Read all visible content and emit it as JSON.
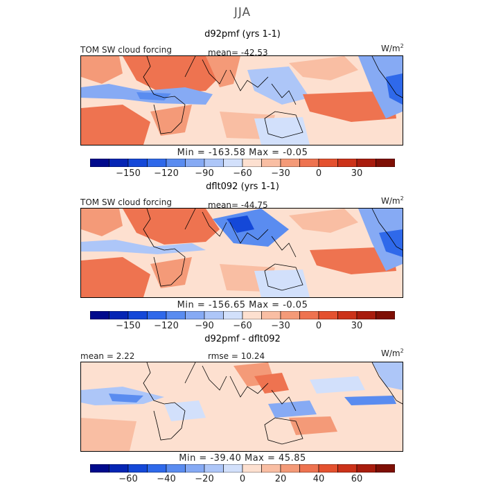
{
  "season_title": "JJA",
  "colors": {
    "scale": [
      "#000a8c",
      "#0525b4",
      "#1448d8",
      "#2f69ea",
      "#5a8cf0",
      "#86aaf4",
      "#adc6f8",
      "#d2e0fb",
      "#ffffff",
      "#fde0d0",
      "#f9bea3",
      "#f49a78",
      "#ee7350",
      "#e4512f",
      "#cc3219",
      "#a81c0d",
      "#7e0f05"
    ],
    "land": "#000000"
  },
  "panels": [
    {
      "title": "d92pmf (yrs 1-1)",
      "left_label": "TOM SW cloud forcing",
      "center_label": "mean= -42.53",
      "units": "W/m",
      "units_sup": "2",
      "minmax": "Min = -163.58 Max = -0.05",
      "ticks": [
        "-150",
        "-120",
        "-90",
        "-60",
        "-30",
        "0",
        "30"
      ]
    },
    {
      "title": "dflt092 (yrs 1-1)",
      "left_label": "TOM SW cloud forcing",
      "center_label": "mean= -44.75",
      "units": "W/m",
      "units_sup": "2",
      "minmax": "Min = -156.65 Max = -0.05",
      "ticks": [
        "-150",
        "-120",
        "-90",
        "-60",
        "-30",
        "0",
        "30"
      ]
    },
    {
      "title": "d92pmf - dflt092",
      "left_label": "mean = 2.22",
      "center_label": "rmse = 10.24",
      "units": "W/m",
      "units_sup": "2",
      "minmax": "Min = -39.40 Max = 45.85",
      "ticks": [
        "-60",
        "-40",
        "-20",
        "0",
        "20",
        "40",
        "60"
      ]
    }
  ],
  "chart_data": [
    {
      "type": "heatmap",
      "title": "d92pmf (yrs 1-1)",
      "variable": "TOM SW cloud forcing",
      "units": "W/m2",
      "mean": -42.53,
      "min": -163.58,
      "max": -0.05,
      "colorbar_levels": [
        -180,
        -165,
        -150,
        -135,
        -120,
        -105,
        -90,
        -75,
        -60,
        -45,
        -30,
        -15,
        0,
        15,
        30,
        45,
        60
      ],
      "colorbar_ticks": [
        -150,
        -120,
        -90,
        -60,
        -30,
        0,
        30
      ]
    },
    {
      "type": "heatmap",
      "title": "dflt092 (yrs 1-1)",
      "variable": "TOM SW cloud forcing",
      "units": "W/m2",
      "mean": -44.75,
      "min": -156.65,
      "max": -0.05,
      "colorbar_levels": [
        -180,
        -165,
        -150,
        -135,
        -120,
        -105,
        -90,
        -75,
        -60,
        -45,
        -30,
        -15,
        0,
        15,
        30,
        45,
        60
      ],
      "colorbar_ticks": [
        -150,
        -120,
        -90,
        -60,
        -30,
        0,
        30
      ]
    },
    {
      "type": "heatmap",
      "title": "d92pmf - dflt092",
      "units": "W/m2",
      "mean": 2.22,
      "rmse": 10.24,
      "min": -39.4,
      "max": 45.85,
      "colorbar_levels": [
        -80,
        -70,
        -60,
        -50,
        -40,
        -30,
        -20,
        -10,
        0,
        10,
        20,
        30,
        40,
        50,
        60,
        70,
        80
      ],
      "colorbar_ticks": [
        -60,
        -40,
        -20,
        0,
        20,
        40,
        60
      ]
    }
  ]
}
